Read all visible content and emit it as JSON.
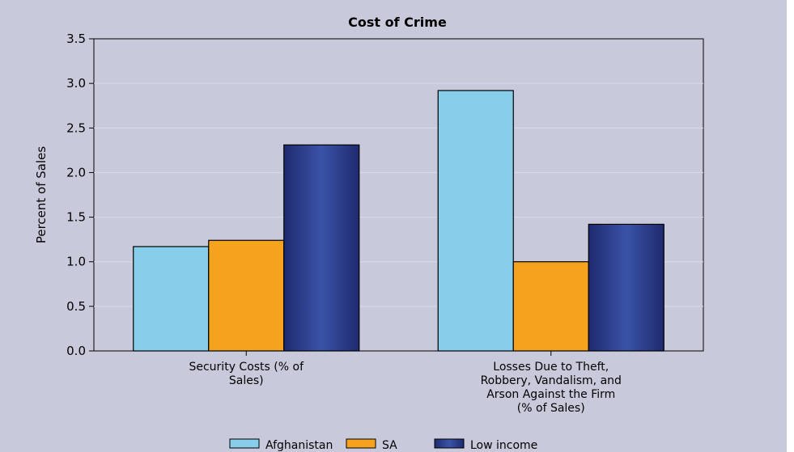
{
  "chart_data": {
    "type": "bar",
    "title": "Cost of Crime",
    "xlabel": "",
    "ylabel": "Percent of Sales",
    "ylim": [
      0,
      3.5
    ],
    "yticks": [
      "0.0",
      "0.5",
      "1.0",
      "1.5",
      "2.0",
      "2.5",
      "3.0",
      "3.5"
    ],
    "grid": true,
    "legend_position": "bottom",
    "categories": [
      [
        "Security Costs (% of",
        "Sales)"
      ],
      [
        "Losses Due to Theft,",
        "Robbery, Vandalism, and",
        "Arson Against the Firm",
        "(% of Sales)"
      ]
    ],
    "series": [
      {
        "name": "Afghanistan",
        "values": [
          1.17,
          2.92
        ],
        "color": "#87ceeb"
      },
      {
        "name": "SA",
        "values": [
          1.24,
          1.0
        ],
        "color": "#f5a21f"
      },
      {
        "name": "Low income",
        "values": [
          2.31,
          1.42
        ],
        "color": "#2e3f92"
      }
    ]
  }
}
